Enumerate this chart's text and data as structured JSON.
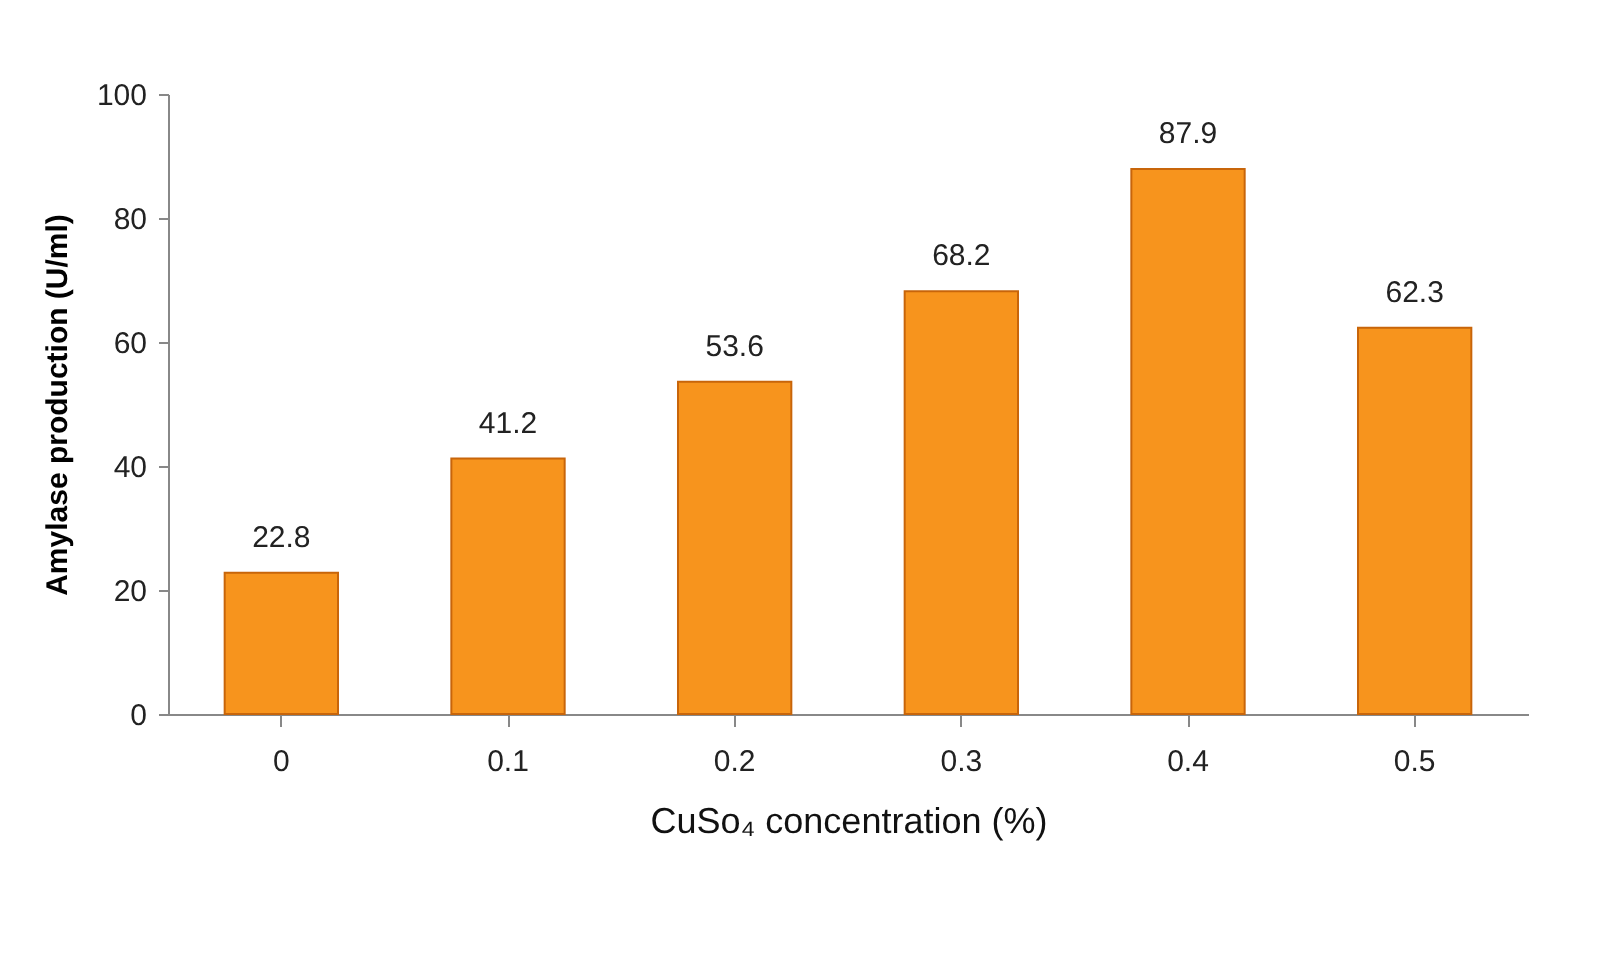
{
  "chart_data": {
    "type": "bar",
    "xlabel": "CuSo₄ concentration (%)",
    "ylabel": "Amylase production (U/ml)",
    "categories": [
      "0",
      "0.1",
      "0.2",
      "0.3",
      "0.4",
      "0.5"
    ],
    "values": [
      22.8,
      41.2,
      53.6,
      68.2,
      87.9,
      62.3
    ],
    "color": "#f7941d",
    "ylim": [
      0,
      100
    ],
    "yticks": [
      0,
      20,
      40,
      60,
      80,
      100
    ],
    "grid": false,
    "data_labels": true
  }
}
